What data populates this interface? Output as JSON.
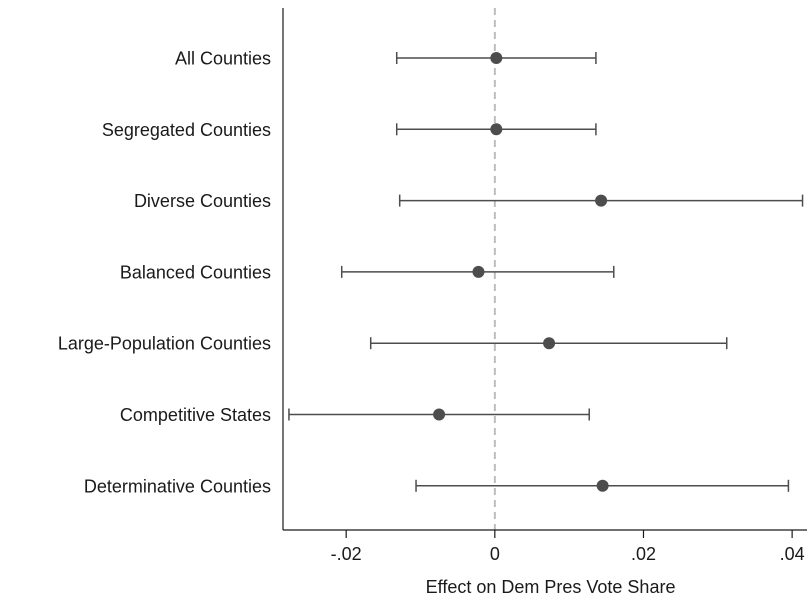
{
  "chart_data": {
    "type": "scatter",
    "subtype": "coefficient-plot-horizontal-ci",
    "title": "",
    "xlabel": "Effect on Dem Pres Vote Share",
    "ylabel": "",
    "xlim": [
      -0.0285,
      0.042
    ],
    "xticks": [
      -0.02,
      0,
      0.02,
      0.04
    ],
    "xtick_labels": [
      "-.02",
      "0",
      ".02",
      ".04"
    ],
    "reference_line": {
      "x": 0,
      "style": "dashed",
      "color": "#bdbdbd"
    },
    "grid": false,
    "categories": [
      "All Counties",
      "Segregated Counties",
      "Diverse Counties",
      "Balanced Counties",
      "Large-Population Counties",
      "Competitive States",
      "Determinative Counties"
    ],
    "estimates": [
      0.0002,
      0.0002,
      0.0143,
      -0.0022,
      0.0073,
      -0.0075,
      0.0145
    ],
    "ci_low": [
      -0.0132,
      -0.0132,
      -0.0128,
      -0.0206,
      -0.0167,
      -0.0277,
      -0.0106
    ],
    "ci_high": [
      0.0136,
      0.0136,
      0.0414,
      0.016,
      0.0312,
      0.0127,
      0.0395
    ],
    "colors": {
      "marker": "#4d4d4d",
      "ci": "#4d4d4d",
      "axis": "#1a1a1a"
    }
  }
}
